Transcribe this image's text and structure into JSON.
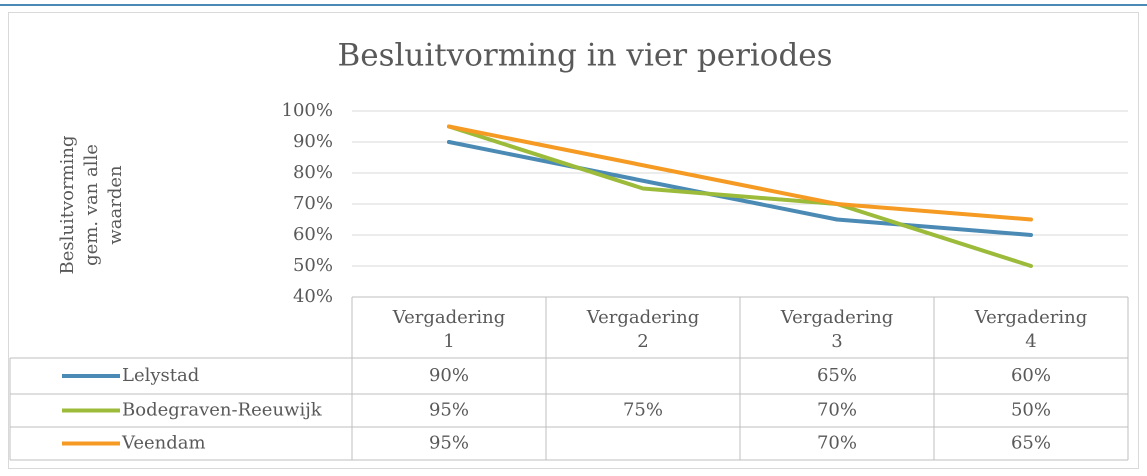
{
  "chart_data": {
    "type": "line",
    "title": "Besluitvorming in vier periodes",
    "y_label": [
      "Besluitvorming",
      "gem. van alle",
      "waarden"
    ],
    "categories": [
      "Vergadering 1",
      "Vergadering 2",
      "Vergadering 3",
      "Vergadering 4"
    ],
    "series": [
      {
        "name": "Lelystad",
        "color": "#4a8ab4",
        "values": [
          90,
          null,
          65,
          60
        ],
        "value_labels": [
          "90%",
          null,
          "65%",
          "60%"
        ]
      },
      {
        "name": "Bodegraven-Reeuwijk",
        "color": "#9cbb3a",
        "values": [
          95,
          75,
          70,
          50
        ],
        "value_labels": [
          "95%",
          "75%",
          "70%",
          "50%"
        ]
      },
      {
        "name": "Veendam",
        "color": "#f59a23",
        "values": [
          95,
          null,
          70,
          65
        ],
        "value_labels": [
          "95%",
          null,
          "70%",
          "65%"
        ]
      }
    ],
    "connect_gaps": true,
    "ylim": [
      40,
      100
    ],
    "yticks": [
      {
        "value": 40,
        "label": "40%"
      },
      {
        "value": 50,
        "label": "50%"
      },
      {
        "value": 60,
        "label": "60%"
      },
      {
        "value": 70,
        "label": "70%"
      },
      {
        "value": 80,
        "label": "80%"
      },
      {
        "value": 90,
        "label": "90%"
      },
      {
        "value": 100,
        "label": "100%"
      }
    ],
    "grid": true
  }
}
